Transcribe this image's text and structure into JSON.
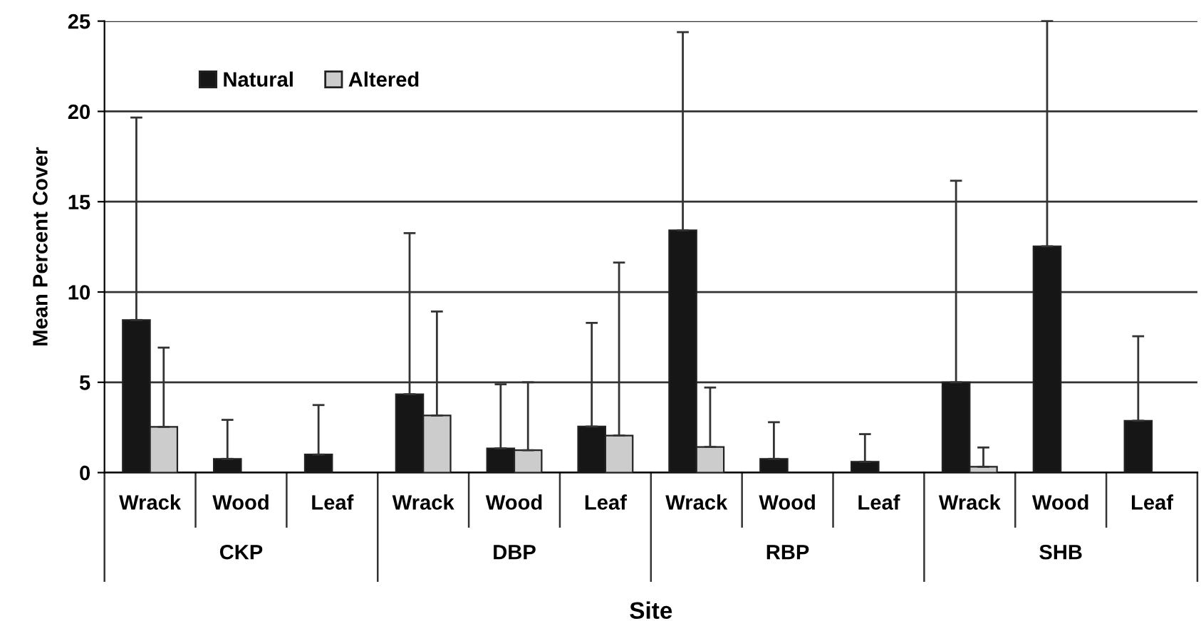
{
  "chart_data": {
    "type": "bar",
    "xlabel": "Site",
    "ylabel": "Mean Percent Cover",
    "categories": [
      "Wrack",
      "Wood",
      "Leaf",
      "Wrack",
      "Wood",
      "Leaf",
      "Wrack",
      "Wood",
      "Leaf",
      "Wrack",
      "Wood",
      "Leaf"
    ],
    "annotations": [
      "CKP",
      "DBP",
      "RBP",
      "SHB"
    ],
    "series": [
      {
        "name": "Natural",
        "color": "#161616",
        "values": [
          8.45,
          0.76,
          1.0,
          4.34,
          1.34,
          2.55,
          13.42,
          0.76,
          0.6,
          5.0,
          12.53,
          2.87
        ],
        "errors": [
          [
            8.45,
            19.66
          ],
          [
            0.76,
            2.92
          ],
          [
            1.0,
            3.74
          ],
          [
            4.34,
            13.26
          ],
          [
            1.34,
            4.89
          ],
          [
            2.55,
            8.29
          ],
          [
            13.42,
            24.39
          ],
          [
            0.76,
            2.79
          ],
          [
            0.6,
            2.13
          ],
          [
            5.0,
            16.16
          ],
          [
            12.53,
            25
          ],
          [
            2.87,
            7.55
          ]
        ]
      },
      {
        "name": "Altered",
        "color": "#cccccc",
        "values": [
          2.53,
          null,
          null,
          3.16,
          1.24,
          2.05,
          1.42,
          null,
          null,
          0.32,
          null,
          null
        ],
        "errors": [
          [
            2.53,
            6.92
          ],
          null,
          null,
          [
            3.16,
            8.92
          ],
          [
            1.24,
            5.0
          ],
          [
            2.05,
            11.63
          ],
          [
            1.42,
            4.71
          ],
          null,
          null,
          [
            0.32,
            1.39
          ],
          null,
          null
        ]
      }
    ],
    "ylim": [
      0,
      25
    ],
    "yticks": [
      0,
      5,
      10,
      15,
      20,
      25
    ],
    "grid": "y",
    "legend": "top left"
  }
}
